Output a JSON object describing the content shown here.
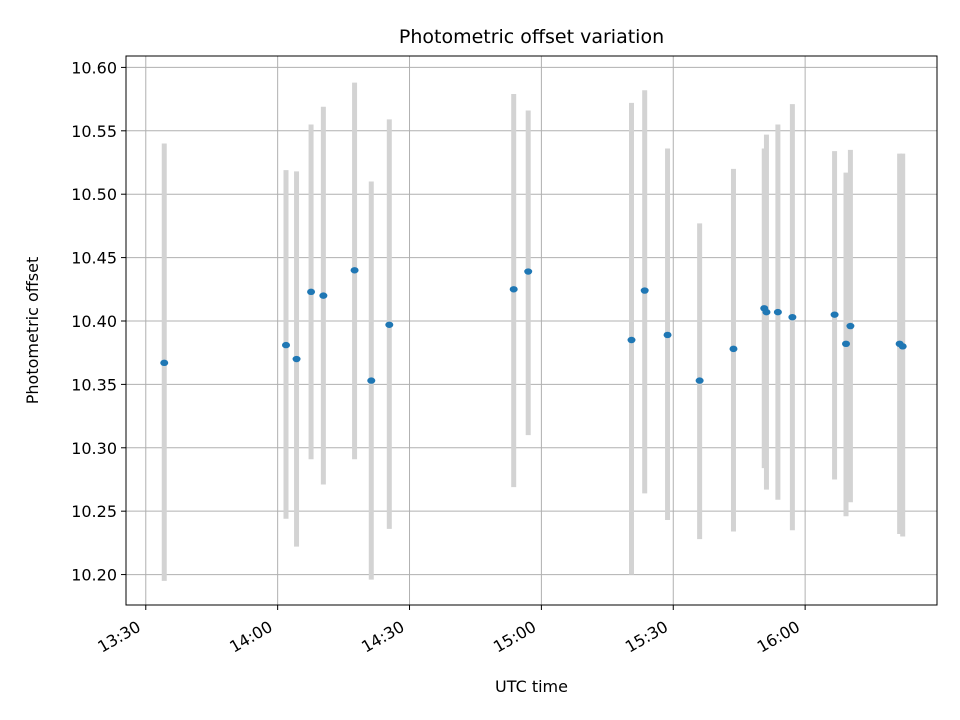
{
  "chart_data": {
    "type": "scatter",
    "title": "Photometric offset variation",
    "xlabel": "UTC time",
    "ylabel": "Photometric offset",
    "x_unit": "minutes since 13:30 UTC",
    "xlim": [
      -4.5,
      180
    ],
    "ylim": [
      10.176,
      10.609
    ],
    "grid": true,
    "x_ticks": [
      {
        "value": 0,
        "label": "13:30"
      },
      {
        "value": 30,
        "label": "14:00"
      },
      {
        "value": 60,
        "label": "14:30"
      },
      {
        "value": 90,
        "label": "15:00"
      },
      {
        "value": 120,
        "label": "15:30"
      },
      {
        "value": 150,
        "label": "16:00"
      }
    ],
    "y_ticks": [
      {
        "value": 10.2,
        "label": "10.20"
      },
      {
        "value": 10.25,
        "label": "10.25"
      },
      {
        "value": 10.3,
        "label": "10.30"
      },
      {
        "value": 10.35,
        "label": "10.35"
      },
      {
        "value": 10.4,
        "label": "10.40"
      },
      {
        "value": 10.45,
        "label": "10.45"
      },
      {
        "value": 10.5,
        "label": "10.50"
      },
      {
        "value": 10.55,
        "label": "10.55"
      },
      {
        "value": 10.6,
        "label": "10.60"
      }
    ],
    "colors": {
      "point": "#1f77b4",
      "errorbar": "#d3d3d3",
      "grid": "#b0b0b0"
    },
    "series": [
      {
        "name": "offset",
        "points": [
          {
            "x": 4.2,
            "y": 10.367,
            "lo": 10.195,
            "hi": 10.54
          },
          {
            "x": 31.9,
            "y": 10.381,
            "lo": 10.244,
            "hi": 10.519
          },
          {
            "x": 34.3,
            "y": 10.37,
            "lo": 10.222,
            "hi": 10.518
          },
          {
            "x": 37.6,
            "y": 10.423,
            "lo": 10.291,
            "hi": 10.555
          },
          {
            "x": 40.4,
            "y": 10.42,
            "lo": 10.271,
            "hi": 10.569
          },
          {
            "x": 47.5,
            "y": 10.44,
            "lo": 10.291,
            "hi": 10.588
          },
          {
            "x": 51.3,
            "y": 10.353,
            "lo": 10.196,
            "hi": 10.51
          },
          {
            "x": 55.4,
            "y": 10.397,
            "lo": 10.236,
            "hi": 10.559
          },
          {
            "x": 83.7,
            "y": 10.425,
            "lo": 10.269,
            "hi": 10.579
          },
          {
            "x": 87.0,
            "y": 10.439,
            "lo": 10.31,
            "hi": 10.566
          },
          {
            "x": 110.5,
            "y": 10.385,
            "lo": 10.2,
            "hi": 10.572
          },
          {
            "x": 113.5,
            "y": 10.424,
            "lo": 10.264,
            "hi": 10.582
          },
          {
            "x": 118.7,
            "y": 10.389,
            "lo": 10.243,
            "hi": 10.536
          },
          {
            "x": 126.0,
            "y": 10.353,
            "lo": 10.228,
            "hi": 10.477
          },
          {
            "x": 133.7,
            "y": 10.378,
            "lo": 10.234,
            "hi": 10.52
          },
          {
            "x": 140.7,
            "y": 10.41,
            "lo": 10.284,
            "hi": 10.536
          },
          {
            "x": 141.2,
            "y": 10.407,
            "lo": 10.267,
            "hi": 10.547
          },
          {
            "x": 143.8,
            "y": 10.407,
            "lo": 10.259,
            "hi": 10.555
          },
          {
            "x": 147.1,
            "y": 10.403,
            "lo": 10.235,
            "hi": 10.571
          },
          {
            "x": 156.7,
            "y": 10.405,
            "lo": 10.275,
            "hi": 10.534
          },
          {
            "x": 159.3,
            "y": 10.382,
            "lo": 10.246,
            "hi": 10.517
          },
          {
            "x": 160.3,
            "y": 10.396,
            "lo": 10.257,
            "hi": 10.535
          },
          {
            "x": 171.5,
            "y": 10.382,
            "lo": 10.232,
            "hi": 10.532
          },
          {
            "x": 172.2,
            "y": 10.38,
            "lo": 10.23,
            "hi": 10.532
          }
        ]
      }
    ]
  }
}
